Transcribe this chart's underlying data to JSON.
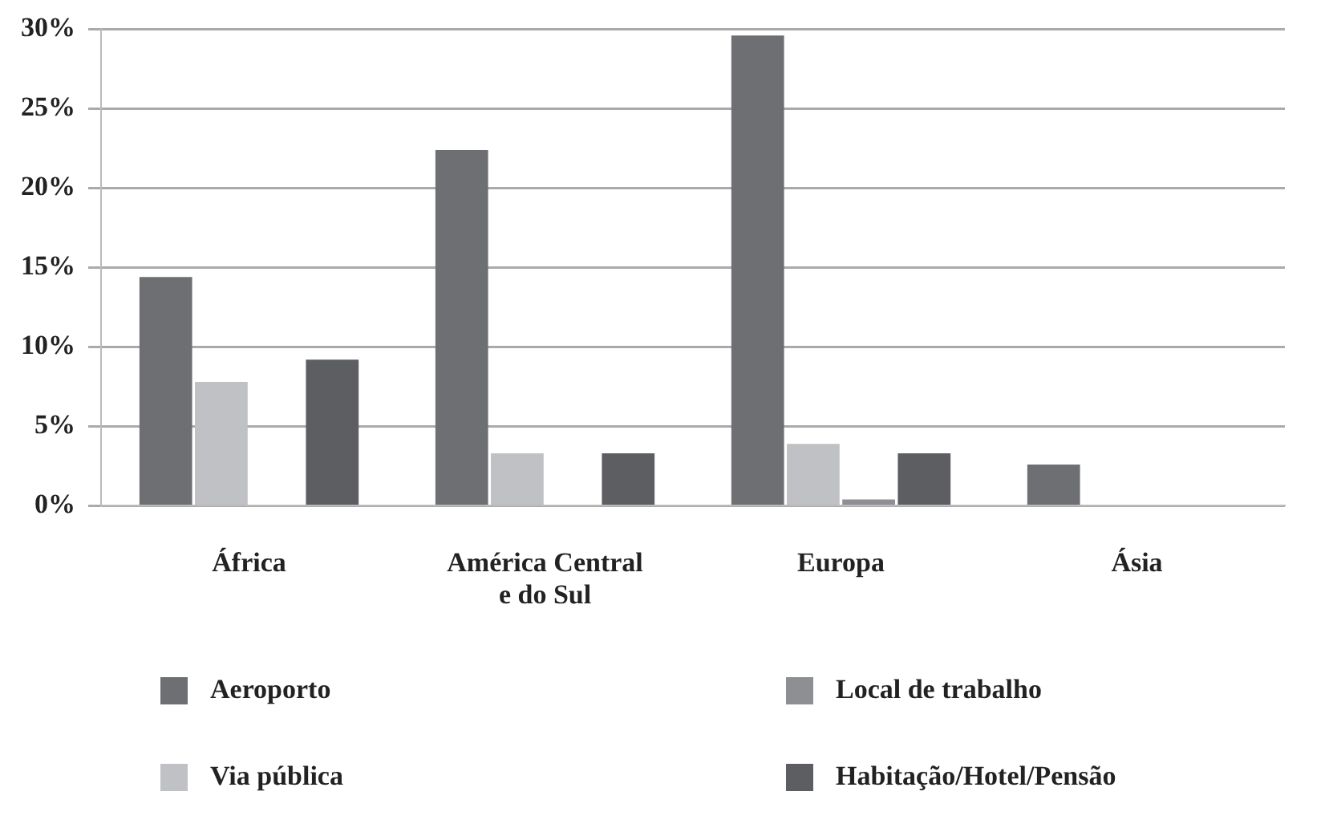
{
  "chart_data": {
    "type": "bar",
    "categories": [
      "África",
      "América Central e do Sul",
      "Europa",
      "Ásia"
    ],
    "series": [
      {
        "name": "Aeroporto",
        "color": "#6e6f73",
        "values": [
          14.4,
          22.4,
          29.6,
          2.6
        ]
      },
      {
        "name": "Via pública",
        "color": "#c0c1c4",
        "values": [
          7.8,
          3.3,
          3.9,
          0
        ]
      },
      {
        "name": "Local de trabalho",
        "color": "#8e8f92",
        "values": [
          0,
          0,
          0.4,
          0
        ]
      },
      {
        "name": "Habitação/Hotel/Pensão",
        "color": "#5d5e62",
        "values": [
          9.2,
          3.3,
          3.3,
          0
        ]
      }
    ],
    "ylim": [
      0,
      30
    ],
    "yticks": [
      {
        "value": 0,
        "label": "0%"
      },
      {
        "value": 5,
        "label": "5%"
      },
      {
        "value": 10,
        "label": "10%"
      },
      {
        "value": 15,
        "label": "15%"
      },
      {
        "value": 20,
        "label": "20%"
      },
      {
        "value": 25,
        "label": "25%"
      },
      {
        "value": 30,
        "label": "30%"
      }
    ],
    "grid": "y",
    "legend": "bottom"
  }
}
